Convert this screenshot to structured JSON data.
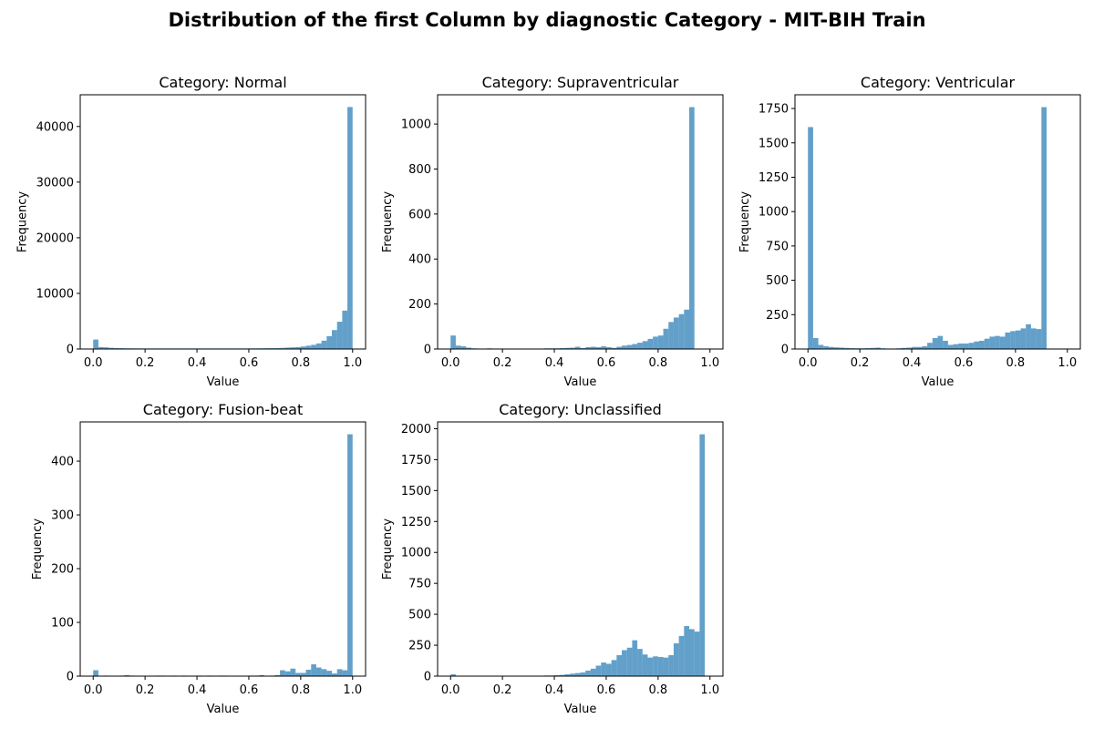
{
  "figure": {
    "title": "Distribution of the first Column by diagnostic Category - MIT-BIH Train"
  },
  "chart_data": [
    {
      "type": "bar",
      "title": "Category: Normal",
      "xlabel": "Value",
      "ylabel": "Frequency",
      "xlim": [
        -0.05,
        1.05
      ],
      "ylim": [
        0,
        45700
      ],
      "xticks": [
        0.0,
        0.2,
        0.4,
        0.6,
        0.8,
        1.0
      ],
      "yticks": [
        0,
        10000,
        20000,
        30000,
        40000
      ],
      "bin_width": 0.02,
      "color": "#1f77b4",
      "values": [
        1700,
        350,
        300,
        220,
        170,
        150,
        130,
        120,
        110,
        100,
        100,
        100,
        100,
        100,
        100,
        100,
        100,
        100,
        100,
        100,
        100,
        100,
        100,
        100,
        100,
        100,
        100,
        100,
        100,
        100,
        110,
        120,
        130,
        140,
        150,
        170,
        200,
        250,
        300,
        350,
        450,
        600,
        750,
        1000,
        1500,
        2300,
        3400,
        4900,
        6900,
        43500
      ]
    },
    {
      "type": "bar",
      "title": "Category: Supraventricular",
      "xlabel": "Value",
      "ylabel": "Frequency",
      "xlim": [
        -0.05,
        1.05
      ],
      "ylim": [
        0,
        1130
      ],
      "xticks": [
        0.0,
        0.2,
        0.4,
        0.6,
        0.8,
        1.0
      ],
      "yticks": [
        0,
        200,
        400,
        600,
        800,
        1000
      ],
      "bin_width": 0.02,
      "color": "#1f77b4",
      "values": [
        60,
        15,
        12,
        6,
        3,
        2,
        1,
        3,
        2,
        1,
        1,
        2,
        2,
        1,
        1,
        1,
        1,
        1,
        3,
        3,
        3,
        4,
        5,
        6,
        10,
        4,
        8,
        10,
        8,
        12,
        8,
        5,
        10,
        15,
        18,
        22,
        28,
        35,
        45,
        55,
        60,
        90,
        120,
        140,
        155,
        175,
        1075,
        0,
        0,
        0
      ]
    },
    {
      "type": "bar",
      "title": "Category: Ventricular",
      "xlabel": "Value",
      "ylabel": "Frequency",
      "xlim": [
        -0.05,
        1.05
      ],
      "ylim": [
        0,
        1850
      ],
      "xticks": [
        0.0,
        0.2,
        0.4,
        0.6,
        0.8,
        1.0
      ],
      "yticks": [
        0,
        250,
        500,
        750,
        1000,
        1250,
        1500,
        1750
      ],
      "bin_width": 0.02,
      "color": "#1f77b4",
      "values": [
        1615,
        80,
        30,
        20,
        15,
        12,
        10,
        8,
        6,
        5,
        5,
        6,
        8,
        10,
        5,
        3,
        3,
        5,
        8,
        10,
        15,
        15,
        20,
        45,
        80,
        95,
        60,
        30,
        35,
        40,
        40,
        45,
        55,
        60,
        75,
        90,
        95,
        90,
        120,
        130,
        135,
        150,
        180,
        150,
        145,
        1760,
        0,
        0,
        0,
        0
      ]
    },
    {
      "type": "bar",
      "title": "Category: Fusion-beat",
      "xlabel": "Value",
      "ylabel": "Frequency",
      "xlim": [
        -0.05,
        1.05
      ],
      "ylim": [
        0,
        473
      ],
      "xticks": [
        0.0,
        0.2,
        0.4,
        0.6,
        0.8,
        1.0
      ],
      "yticks": [
        0,
        100,
        200,
        300,
        400
      ],
      "bin_width": 0.02,
      "color": "#1f77b4",
      "values": [
        11,
        0,
        1,
        0,
        0,
        1,
        2,
        1,
        0,
        0,
        0,
        0,
        1,
        1,
        0,
        1,
        0,
        1,
        0,
        0,
        1,
        0,
        1,
        0,
        1,
        1,
        0,
        0,
        0,
        0,
        1,
        1,
        2,
        0,
        1,
        2,
        11,
        9,
        14,
        6,
        6,
        12,
        22,
        16,
        13,
        10,
        5,
        13,
        11,
        450
      ]
    },
    {
      "type": "bar",
      "title": "Category: Unclassified",
      "xlabel": "Value",
      "ylabel": "Frequency",
      "xlim": [
        -0.05,
        1.05
      ],
      "ylim": [
        0,
        2055
      ],
      "xticks": [
        0.0,
        0.2,
        0.4,
        0.6,
        0.8,
        1.0
      ],
      "yticks": [
        0,
        250,
        500,
        750,
        1000,
        1250,
        1500,
        1750,
        2000
      ],
      "bin_width": 0.02,
      "color": "#1f77b4",
      "values": [
        15,
        2,
        1,
        1,
        1,
        1,
        1,
        1,
        1,
        1,
        1,
        1,
        1,
        1,
        1,
        2,
        2,
        3,
        5,
        5,
        8,
        10,
        15,
        20,
        25,
        30,
        45,
        60,
        85,
        110,
        100,
        130,
        170,
        210,
        230,
        290,
        220,
        175,
        150,
        160,
        155,
        150,
        170,
        265,
        325,
        405,
        380,
        360,
        1955,
        0
      ]
    }
  ]
}
